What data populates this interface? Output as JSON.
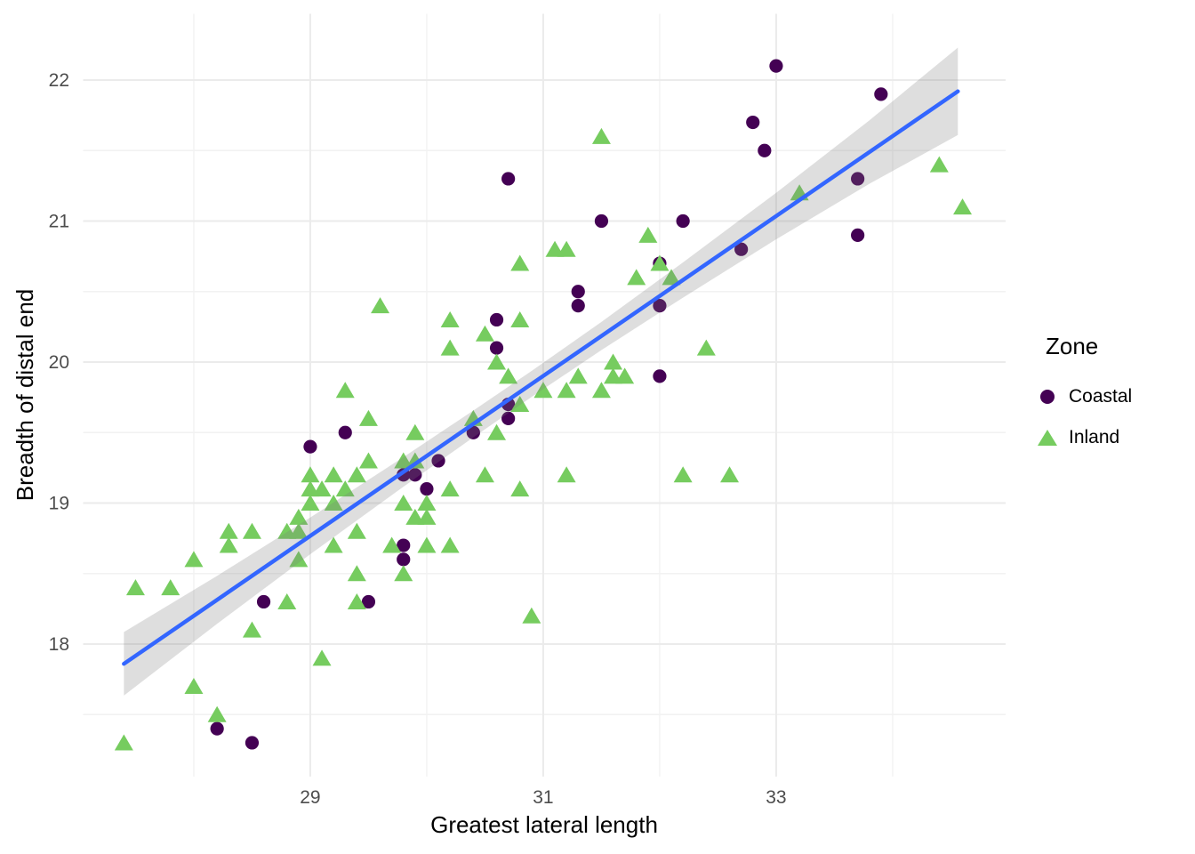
{
  "chart_data": {
    "type": "scatter",
    "title": "",
    "xlabel": "Greatest lateral length",
    "ylabel": "Breadth of distal end",
    "xlim": [
      27.05,
      34.97
    ],
    "ylim": [
      17.06,
      22.47
    ],
    "x_major_ticks": [
      29,
      31,
      33
    ],
    "x_minor_ticks": [
      28,
      30,
      32,
      34
    ],
    "y_major_ticks": [
      18,
      19,
      20,
      21,
      22
    ],
    "y_minor_ticks": [
      17.5,
      18.5,
      19.5,
      20.5,
      21.5
    ],
    "grid": {
      "major_color": "#EBEBEB",
      "minor_color": "#F2F2F2"
    },
    "tick_label_color": "#4D4D4D",
    "legend": {
      "title": "Zone",
      "position": "right",
      "entries": [
        {
          "label": "Coastal",
          "marker": "circle",
          "color": "#440154"
        },
        {
          "label": "Inland",
          "marker": "triangle",
          "color": "#76CC5F"
        }
      ]
    },
    "series": [
      {
        "name": "Coastal",
        "marker": "circle",
        "color": "#440154",
        "points": [
          [
            33.0,
            22.1
          ],
          [
            33.9,
            21.9
          ],
          [
            32.8,
            21.7
          ],
          [
            32.9,
            21.5
          ],
          [
            30.7,
            21.3
          ],
          [
            33.7,
            21.3
          ],
          [
            31.5,
            21.0
          ],
          [
            32.2,
            21.0
          ],
          [
            33.7,
            20.9
          ],
          [
            32.7,
            20.8
          ],
          [
            32.0,
            20.7
          ],
          [
            31.3,
            20.5
          ],
          [
            31.3,
            20.4
          ],
          [
            32.0,
            20.4
          ],
          [
            30.6,
            20.3
          ],
          [
            30.6,
            20.1
          ],
          [
            32.0,
            19.9
          ],
          [
            30.7,
            19.7
          ],
          [
            30.7,
            19.6
          ],
          [
            30.4,
            19.5
          ],
          [
            29.3,
            19.5
          ],
          [
            29.0,
            19.4
          ],
          [
            30.1,
            19.3
          ],
          [
            29.8,
            19.2
          ],
          [
            29.9,
            19.2
          ],
          [
            30.0,
            19.1
          ],
          [
            29.8,
            18.7
          ],
          [
            29.8,
            18.6
          ],
          [
            28.6,
            18.3
          ],
          [
            29.5,
            18.3
          ],
          [
            28.2,
            17.4
          ],
          [
            28.5,
            17.3
          ]
        ]
      },
      {
        "name": "Inland",
        "marker": "triangle",
        "color": "#76CC5F",
        "points": [
          [
            31.5,
            21.6
          ],
          [
            34.4,
            21.4
          ],
          [
            33.2,
            21.2
          ],
          [
            34.6,
            21.1
          ],
          [
            31.9,
            20.9
          ],
          [
            31.1,
            20.8
          ],
          [
            31.2,
            20.8
          ],
          [
            30.8,
            20.7
          ],
          [
            32.0,
            20.7
          ],
          [
            31.8,
            20.6
          ],
          [
            32.1,
            20.6
          ],
          [
            29.6,
            20.4
          ],
          [
            30.2,
            20.3
          ],
          [
            30.8,
            20.3
          ],
          [
            30.5,
            20.2
          ],
          [
            30.2,
            20.1
          ],
          [
            32.4,
            20.1
          ],
          [
            30.6,
            20.0
          ],
          [
            31.6,
            20.0
          ],
          [
            30.7,
            19.9
          ],
          [
            31.3,
            19.9
          ],
          [
            31.6,
            19.9
          ],
          [
            31.7,
            19.9
          ],
          [
            29.3,
            19.8
          ],
          [
            31.0,
            19.8
          ],
          [
            31.2,
            19.8
          ],
          [
            31.5,
            19.8
          ],
          [
            30.8,
            19.7
          ],
          [
            29.5,
            19.6
          ],
          [
            30.4,
            19.6
          ],
          [
            29.9,
            19.5
          ],
          [
            30.6,
            19.5
          ],
          [
            29.5,
            19.3
          ],
          [
            29.8,
            19.3
          ],
          [
            29.9,
            19.3
          ],
          [
            29.0,
            19.2
          ],
          [
            29.2,
            19.2
          ],
          [
            29.4,
            19.2
          ],
          [
            30.5,
            19.2
          ],
          [
            31.2,
            19.2
          ],
          [
            32.2,
            19.2
          ],
          [
            32.6,
            19.2
          ],
          [
            29.0,
            19.1
          ],
          [
            29.1,
            19.1
          ],
          [
            29.3,
            19.1
          ],
          [
            30.2,
            19.1
          ],
          [
            30.8,
            19.1
          ],
          [
            29.0,
            19.0
          ],
          [
            29.2,
            19.0
          ],
          [
            29.8,
            19.0
          ],
          [
            30.0,
            19.0
          ],
          [
            28.9,
            18.9
          ],
          [
            29.9,
            18.9
          ],
          [
            30.0,
            18.9
          ],
          [
            28.3,
            18.8
          ],
          [
            28.5,
            18.8
          ],
          [
            28.8,
            18.8
          ],
          [
            28.9,
            18.8
          ],
          [
            29.4,
            18.8
          ],
          [
            28.3,
            18.7
          ],
          [
            29.2,
            18.7
          ],
          [
            29.7,
            18.7
          ],
          [
            30.0,
            18.7
          ],
          [
            30.2,
            18.7
          ],
          [
            28.0,
            18.6
          ],
          [
            28.9,
            18.6
          ],
          [
            29.4,
            18.5
          ],
          [
            29.8,
            18.5
          ],
          [
            27.5,
            18.4
          ],
          [
            27.8,
            18.4
          ],
          [
            28.8,
            18.3
          ],
          [
            29.4,
            18.3
          ],
          [
            30.9,
            18.2
          ],
          [
            28.5,
            18.1
          ],
          [
            29.1,
            17.9
          ],
          [
            28.0,
            17.7
          ],
          [
            28.2,
            17.5
          ],
          [
            27.4,
            17.3
          ]
        ]
      }
    ],
    "smooth": {
      "method": "lm",
      "line_color": "#3366FF",
      "ribbon_fill_rgba": "rgba(125,125,125,0.25)",
      "x_start": 27.4,
      "y_start": 17.86,
      "x_end": 34.56,
      "y_end": 21.92,
      "ribbon_x": [
        27.4,
        28.2,
        29.0,
        29.8,
        30.4,
        30.9,
        31.5,
        32.2,
        33.0,
        33.8,
        34.56
      ],
      "ribbon_half": [
        0.225,
        0.17,
        0.13,
        0.105,
        0.095,
        0.092,
        0.1,
        0.125,
        0.165,
        0.225,
        0.31
      ]
    }
  }
}
